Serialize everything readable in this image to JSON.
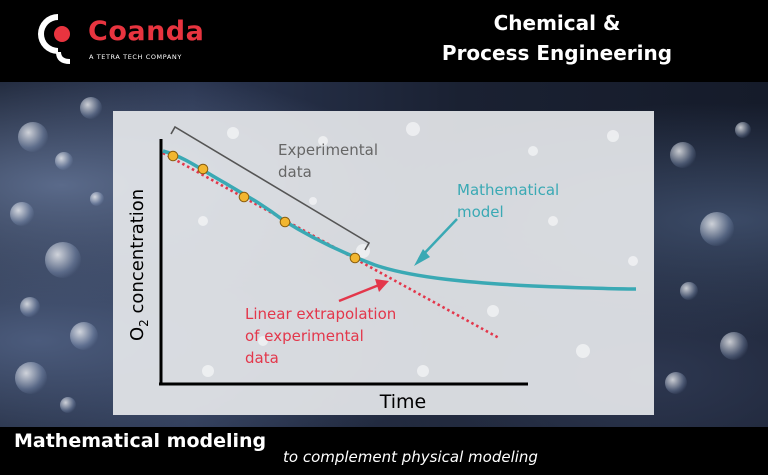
{
  "brand": {
    "name": "Coanda",
    "tagline": "A TETRA TECH COMPANY",
    "colors": {
      "red": "#e8343f",
      "white": "#ffffff",
      "black": "#000000"
    }
  },
  "header": {
    "title_line1": "Chemical &",
    "title_line2": "Process Engineering"
  },
  "diagram": {
    "y_axis_label_prefix": "O",
    "y_axis_label_subscript": "2",
    "y_axis_label_rest": " concentration",
    "x_axis_label": "Time",
    "experimental_label_line1": "Experimental",
    "experimental_label_line2": "data",
    "model_label_line1": "Mathematical",
    "model_label_line2": "model",
    "extrapolation_label_line1": "Linear extrapolation",
    "extrapolation_label_line2": "of experimental",
    "extrapolation_label_line3": "data",
    "colors": {
      "model": "#3aa9b4",
      "extrapolation": "#e3374b",
      "points": "#f2b630",
      "bracket": "#555555",
      "axis": "#000000",
      "experimental_text": "#666666"
    }
  },
  "footer": {
    "main": "Mathematical modeling",
    "sub": "to complement physical modeling"
  }
}
